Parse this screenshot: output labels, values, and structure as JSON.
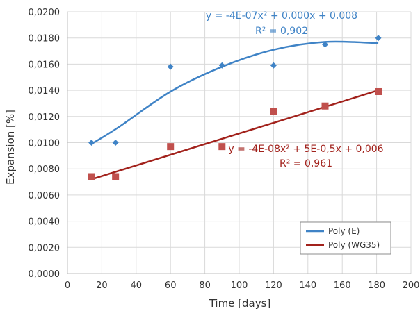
{
  "chart_data": {
    "type": "scatter",
    "title": "",
    "xlabel": "Time [days]",
    "ylabel": "Expansion [%]",
    "xlim": [
      0,
      200
    ],
    "ylim": [
      0,
      0.02
    ],
    "x_ticks": [
      0,
      20,
      40,
      60,
      80,
      100,
      120,
      140,
      160,
      180,
      200
    ],
    "x_tick_labels": [
      "0",
      "20",
      "40",
      "60",
      "80",
      "100",
      "120",
      "140",
      "160",
      "180",
      "200"
    ],
    "y_ticks": [
      0,
      0.002,
      0.004,
      0.006,
      0.008,
      0.01,
      0.012,
      0.014,
      0.016,
      0.018,
      0.02
    ],
    "y_tick_labels": [
      "0,0000",
      "0,0020",
      "0,0040",
      "0,0060",
      "0,0080",
      "0,0100",
      "0,0120",
      "0,0140",
      "0,0160",
      "0,0180",
      "0,0200"
    ],
    "grid": true,
    "legend_position": "bottom-right",
    "series": [
      {
        "marker": "diamond",
        "color": "#3f83c6",
        "x": [
          14,
          28,
          60,
          90,
          120,
          150,
          181
        ],
        "y": [
          0.01,
          0.01,
          0.0158,
          0.0159,
          0.0159,
          0.0175,
          0.018
        ],
        "trendline": {
          "name": "Poly (E)",
          "x": [
            14,
            30,
            60,
            90,
            120,
            150,
            181
          ],
          "y": [
            0.0099,
            0.0112,
            0.0139,
            0.0158,
            0.0171,
            0.0177,
            0.0176
          ]
        },
        "equation": "y = -4E-07x² + 0,000x + 0,008",
        "r_squared": "R² = 0,902"
      },
      {
        "marker": "square",
        "color": "#c0504d",
        "x": [
          14,
          28,
          60,
          90,
          120,
          150,
          181
        ],
        "y": [
          0.0074,
          0.0074,
          0.0097,
          0.0097,
          0.0124,
          0.0128,
          0.0139
        ],
        "trendline": {
          "name": "Poly (WG35)",
          "color": "#a2221c",
          "x": [
            14,
            181
          ],
          "y": [
            0.0072,
            0.014
          ]
        },
        "equation": "y = -4E-08x² + 5E-0,5x + 0,006",
        "r_squared": "R² = 0,961"
      }
    ]
  }
}
